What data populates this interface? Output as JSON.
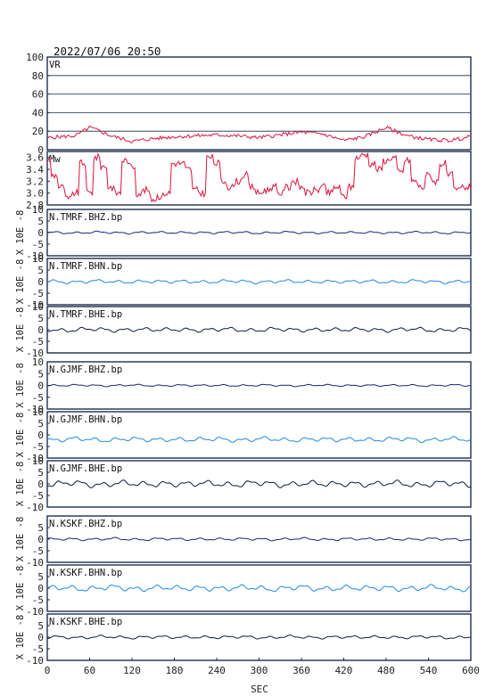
{
  "header": {
    "timestamp": "2022/07/06  20:50"
  },
  "colors": {
    "frame": "#1f2f4f",
    "vr_line": "#dc143c",
    "mw_line": "#dc143c",
    "bhz": "#1a237e",
    "bhn": "#1e88e5",
    "bhe": "#0d1b3e",
    "grid": "#1f2f4f"
  },
  "chart_data": [
    {
      "type": "line",
      "title": "VR",
      "ylim": [
        0,
        100
      ],
      "yticks": [
        "0",
        "20",
        "40",
        "60",
        "80",
        "100"
      ],
      "grid": true,
      "x": [
        0,
        20,
        40,
        60,
        75,
        90,
        120,
        150,
        180,
        210,
        240,
        270,
        300,
        330,
        360,
        390,
        420,
        450,
        480,
        510,
        540,
        570,
        600
      ],
      "series": [
        {
          "values": [
            13,
            14,
            15,
            24,
            20,
            15,
            9,
            12,
            14,
            15,
            16,
            15,
            13,
            16,
            19,
            17,
            10,
            14,
            24,
            15,
            11,
            10,
            14
          ]
        }
      ]
    },
    {
      "type": "line",
      "title": "Mw",
      "ylim": [
        2.8,
        3.7
      ],
      "yticks": [
        "2.8",
        "3.0",
        "3.2",
        "3.4",
        "3.6"
      ],
      "x": [
        0,
        10,
        20,
        30,
        40,
        50,
        60,
        70,
        80,
        90,
        100,
        110,
        120,
        130,
        140,
        150,
        160,
        170,
        180,
        190,
        200,
        210,
        220,
        230,
        240,
        250,
        260,
        270,
        280,
        290,
        300,
        310,
        320,
        330,
        340,
        350,
        360,
        370,
        380,
        390,
        400,
        410,
        420,
        430,
        440,
        450,
        460,
        470,
        480,
        490,
        500,
        510,
        520,
        530,
        540,
        550,
        560,
        570,
        580,
        590,
        600
      ],
      "series": [
        {
          "values": [
            3.55,
            3.3,
            3.1,
            2.9,
            3.0,
            3.5,
            3.0,
            3.6,
            3.45,
            3.1,
            3.0,
            3.55,
            3.45,
            3.0,
            3.05,
            2.9,
            2.95,
            3.0,
            3.5,
            3.5,
            3.4,
            3.05,
            3.0,
            3.6,
            3.5,
            3.2,
            3.1,
            3.2,
            3.3,
            3.1,
            3.0,
            3.05,
            3.1,
            3.0,
            3.1,
            3.2,
            3.1,
            3.0,
            3.05,
            3.1,
            3.0,
            3.1,
            2.95,
            3.1,
            3.6,
            3.65,
            3.5,
            3.4,
            3.55,
            3.6,
            3.35,
            3.55,
            3.2,
            3.1,
            3.3,
            3.2,
            3.5,
            3.3,
            3.05,
            3.1,
            3.1
          ]
        }
      ]
    },
    {
      "type": "line",
      "title": "N.TMRF.BHZ.bp",
      "ylabel": "X 10E -8",
      "ylim": [
        -10,
        10
      ],
      "yticks": [
        "10",
        "5",
        "0",
        "-5",
        "-10"
      ],
      "amplitude": 0.6,
      "seed": 11
    },
    {
      "type": "line",
      "title": "N.TMRF.BHN.bp",
      "ylabel": "X 10E -8",
      "ylim": [
        -10,
        10
      ],
      "yticks": [
        "10",
        "5",
        "0",
        "-5",
        "-10"
      ],
      "amplitude": 0.9,
      "seed": 23
    },
    {
      "type": "line",
      "title": "N.TMRF.BHE.bp",
      "ylabel": "X 10E -8",
      "ylim": [
        -10,
        10
      ],
      "yticks": [
        "10",
        "5",
        "0",
        "-5",
        "-10"
      ],
      "amplitude": 1.1,
      "seed": 37
    },
    {
      "type": "line",
      "title": "N.GJMF.BHZ.bp",
      "ylabel": "X 10E -8",
      "ylim": [
        -10,
        10
      ],
      "yticks": [
        "10",
        "5",
        "0",
        "-5",
        "-10"
      ],
      "amplitude": 0.5,
      "seed": 41
    },
    {
      "type": "line",
      "title": "N.GJMF.BHN.bp",
      "ylabel": "X 10E -8",
      "ylim": [
        -10,
        10
      ],
      "yticks": [
        "10",
        "5",
        "0",
        "-5",
        "-10"
      ],
      "amplitude": 1.2,
      "seed": 53,
      "offset": -2
    },
    {
      "type": "line",
      "title": "N.GJMF.BHE.bp",
      "ylabel": "X 10E -8",
      "ylim": [
        -10,
        10
      ],
      "yticks": [
        "10",
        "5",
        "0",
        "-5",
        "-10"
      ],
      "amplitude": 1.6,
      "seed": 67
    },
    {
      "type": "line",
      "title": "N.KSKF.BHZ.bp",
      "ylabel": "X 10E -8",
      "ylim": [
        -10,
        10
      ],
      "yticks": [
        "5",
        "0",
        "-5",
        "-10"
      ],
      "amplitude": 0.7,
      "seed": 71
    },
    {
      "type": "line",
      "title": "N.KSKF.BHN.bp",
      "ylabel": "X 10E -8",
      "ylim": [
        -10,
        10
      ],
      "yticks": [
        "5",
        "0",
        "-5",
        "-10"
      ],
      "amplitude": 1.5,
      "seed": 83
    },
    {
      "type": "line",
      "title": "N.KSKF.BHE.bp",
      "ylabel": "X 10E -8",
      "ylim": [
        -10,
        10
      ],
      "yticks": [
        "5",
        "0",
        "-5",
        "-10"
      ],
      "amplitude": 0.8,
      "seed": 97
    }
  ],
  "xaxis": {
    "label": "SEC",
    "xlim": [
      0,
      600
    ],
    "ticks": [
      "0",
      "60",
      "120",
      "180",
      "240",
      "300",
      "360",
      "420",
      "480",
      "540",
      "600"
    ]
  }
}
